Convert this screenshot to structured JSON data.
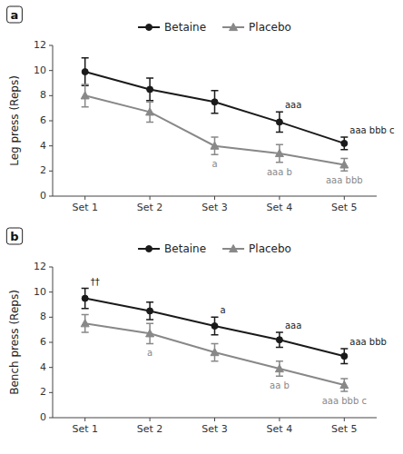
{
  "chart_data": [
    {
      "type": "line",
      "title": "a",
      "ylabel": "Leg press (Reps)",
      "categories": [
        "Set 1",
        "Set 2",
        "Set 3",
        "Set 4",
        "Set 5"
      ],
      "series": [
        {
          "name": "Betaine",
          "color": "#1a1a1a",
          "marker": "circle",
          "values": [
            9.9,
            8.5,
            7.5,
            5.9,
            4.2
          ],
          "errors": [
            1.1,
            0.9,
            0.9,
            0.8,
            0.5
          ]
        },
        {
          "name": "Placebo",
          "color": "#888888",
          "marker": "triangle",
          "values": [
            8.0,
            6.7,
            4.0,
            3.4,
            2.5
          ],
          "errors": [
            0.9,
            0.8,
            0.7,
            0.7,
            0.5
          ]
        }
      ],
      "ylim": [
        0,
        12
      ],
      "yticks": [
        0,
        2,
        4,
        6,
        8,
        10,
        12
      ],
      "grid": false,
      "legend": "top",
      "annotations": [
        {
          "text": "aaa",
          "series": "Betaine",
          "category": "Set 4"
        },
        {
          "text": "aaa bbb c",
          "series": "Betaine",
          "category": "Set 5"
        },
        {
          "text": "a",
          "series": "Placebo",
          "category": "Set 3"
        },
        {
          "text": "aaa b",
          "series": "Placebo",
          "category": "Set 4"
        },
        {
          "text": "aaa bbb",
          "series": "Placebo",
          "category": "Set 5"
        }
      ]
    },
    {
      "type": "line",
      "title": "b",
      "ylabel": "Bench press (Reps)",
      "categories": [
        "Set 1",
        "Set 2",
        "Set 3",
        "Set 4",
        "Set 5"
      ],
      "series": [
        {
          "name": "Betaine",
          "color": "#1a1a1a",
          "marker": "circle",
          "values": [
            9.5,
            8.5,
            7.3,
            6.2,
            4.9
          ],
          "errors": [
            0.8,
            0.7,
            0.7,
            0.6,
            0.6
          ]
        },
        {
          "name": "Placebo",
          "color": "#888888",
          "marker": "triangle",
          "values": [
            7.5,
            6.7,
            5.2,
            3.9,
            2.6
          ],
          "errors": [
            0.7,
            0.8,
            0.7,
            0.6,
            0.5
          ]
        }
      ],
      "ylim": [
        0,
        12
      ],
      "yticks": [
        0,
        2,
        4,
        6,
        8,
        10,
        12
      ],
      "grid": false,
      "legend": "top",
      "annotations": [
        {
          "text": "a",
          "series": "Betaine",
          "category": "Set 3"
        },
        {
          "text": "aaa",
          "series": "Betaine",
          "category": "Set 4"
        },
        {
          "text": "aaa bbb",
          "series": "Betaine",
          "category": "Set 5"
        },
        {
          "text": "a",
          "series": "Placebo",
          "category": "Set 2"
        },
        {
          "text": "aa b",
          "series": "Placebo",
          "category": "Set 4"
        },
        {
          "text": "aaa bbb c",
          "series": "Placebo",
          "category": "Set 5"
        },
        {
          "text": "††",
          "series": "Betaine",
          "category": "Set 1"
        }
      ]
    }
  ]
}
